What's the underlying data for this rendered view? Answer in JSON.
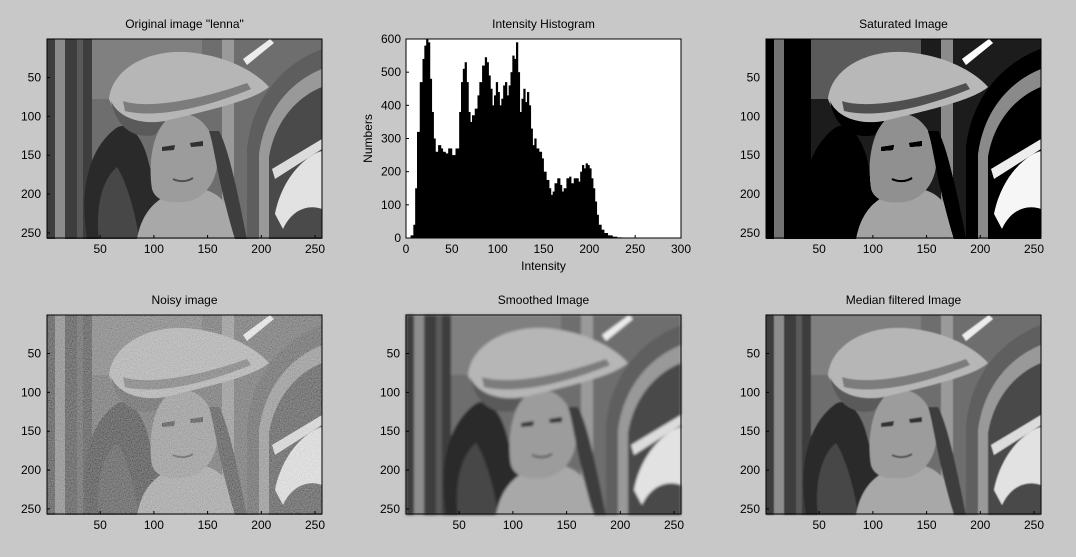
{
  "chart_data": [
    {
      "type": "image",
      "title": "Original image \"lenna\"",
      "image_content": "grayscale lenna",
      "xticks": [
        50,
        100,
        150,
        200,
        250
      ],
      "yticks": [
        50,
        100,
        150,
        200,
        250
      ],
      "xlim": [
        0.5,
        256.5
      ],
      "ylim": [
        0.5,
        256.5
      ],
      "y_reversed": true
    },
    {
      "type": "bar",
      "title": "Intensity Histogram",
      "xlabel": "Intensity",
      "ylabel": "Numbers",
      "xlim": [
        0,
        300
      ],
      "ylim": [
        0,
        600
      ],
      "xticks": [
        0,
        50,
        100,
        150,
        200,
        250,
        300
      ],
      "yticks": [
        0,
        100,
        200,
        300,
        400,
        500,
        600
      ],
      "x": [
        0,
        5,
        8,
        10,
        12,
        15,
        18,
        20,
        22,
        24,
        26,
        28,
        30,
        32,
        35,
        38,
        40,
        43,
        46,
        50,
        54,
        58,
        60,
        62,
        64,
        66,
        68,
        70,
        72,
        75,
        78,
        80,
        83,
        86,
        88,
        90,
        92,
        94,
        96,
        98,
        100,
        102,
        104,
        106,
        108,
        110,
        112,
        114,
        116,
        118,
        120,
        122,
        124,
        126,
        128,
        130,
        132,
        134,
        136,
        138,
        140,
        142,
        145,
        148,
        150,
        153,
        156,
        158,
        160,
        162,
        165,
        168,
        170,
        172,
        175,
        178,
        180,
        183,
        186,
        188,
        190,
        192,
        194,
        196,
        198,
        200,
        202,
        204,
        206,
        208,
        210,
        213,
        216,
        220,
        225,
        230,
        235,
        240,
        250,
        256
      ],
      "values": [
        0,
        8,
        40,
        150,
        320,
        470,
        540,
        580,
        600,
        590,
        480,
        380,
        300,
        260,
        280,
        270,
        260,
        255,
        270,
        250,
        270,
        380,
        470,
        510,
        530,
        470,
        380,
        350,
        370,
        390,
        430,
        470,
        520,
        545,
        530,
        490,
        450,
        400,
        430,
        470,
        440,
        400,
        420,
        460,
        470,
        430,
        460,
        500,
        550,
        540,
        590,
        500,
        380,
        420,
        450,
        410,
        440,
        400,
        330,
        280,
        300,
        270,
        260,
        240,
        200,
        175,
        150,
        130,
        140,
        165,
        180,
        160,
        140,
        150,
        180,
        185,
        165,
        180,
        180,
        170,
        200,
        220,
        210,
        225,
        220,
        210,
        180,
        150,
        110,
        70,
        40,
        25,
        15,
        8,
        4,
        2,
        1,
        0,
        0,
        0
      ]
    },
    {
      "type": "image",
      "title": "Saturated Image",
      "image_content": "contrast-saturated lenna",
      "xticks": [
        50,
        100,
        150,
        200,
        250
      ],
      "yticks": [
        50,
        100,
        150,
        200,
        250
      ],
      "xlim": [
        0.5,
        256.5
      ],
      "ylim": [
        0.5,
        256.5
      ],
      "y_reversed": true
    },
    {
      "type": "image",
      "title": "Noisy image",
      "image_content": "noisy lenna",
      "xticks": [
        50,
        100,
        150,
        200,
        250
      ],
      "yticks": [
        50,
        100,
        150,
        200,
        250
      ],
      "xlim": [
        0.5,
        256.5
      ],
      "ylim": [
        0.5,
        256.5
      ],
      "y_reversed": true
    },
    {
      "type": "image",
      "title": "Smoothed Image",
      "image_content": "smoothed lenna",
      "xticks": [
        50,
        100,
        150,
        200,
        250
      ],
      "yticks": [
        50,
        100,
        150,
        200,
        250
      ],
      "xlim": [
        0.5,
        256.5
      ],
      "ylim": [
        0.5,
        256.5
      ],
      "y_reversed": true
    },
    {
      "type": "image",
      "title": "Median filtered Image",
      "image_content": "median-filtered lenna",
      "xticks": [
        50,
        100,
        150,
        200,
        250
      ],
      "yticks": [
        50,
        100,
        150,
        200,
        250
      ],
      "xlim": [
        0.5,
        256.5
      ],
      "ylim": [
        0.5,
        256.5
      ],
      "y_reversed": true
    }
  ]
}
